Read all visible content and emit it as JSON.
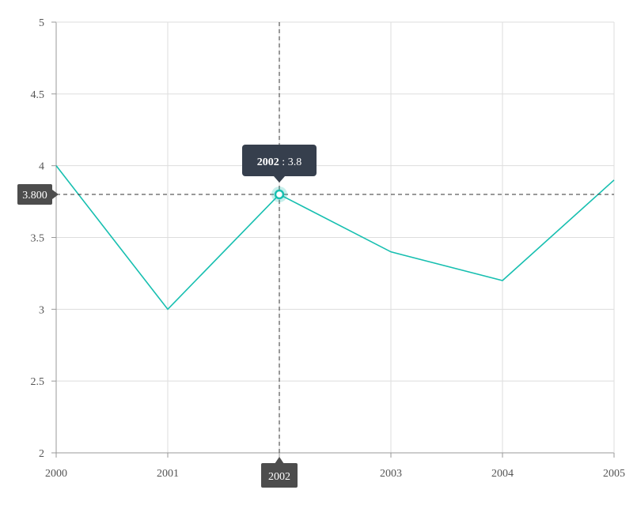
{
  "chart_data": {
    "type": "line",
    "title": "",
    "xlabel": "",
    "ylabel": "",
    "x": [
      2000,
      2001,
      2002,
      2003,
      2004,
      2005
    ],
    "x_tick_labels": [
      "2000",
      "2001",
      "2002",
      "2003",
      "2004",
      "2005"
    ],
    "y_tick_labels": [
      "2",
      "2.5",
      "3",
      "3.5",
      "4",
      "4.5",
      "5"
    ],
    "xlim": [
      2000,
      2005
    ],
    "ylim": [
      2,
      5
    ],
    "grid": true,
    "series": [
      {
        "values": [
          4.0,
          3.0,
          3.8,
          3.4,
          3.2,
          3.9
        ],
        "color": "#17bfb0"
      }
    ],
    "crosshair": {
      "x": 2002,
      "y": 3.8,
      "x_label": "2002",
      "y_label": "3.800"
    },
    "tooltip": {
      "x_text": "2002",
      "separator": " : ",
      "y_text": "3.8"
    }
  },
  "colors": {
    "line": "#17bfb0",
    "grid": "#dddddd",
    "axis": "#999999",
    "crosshair": "#333333",
    "badge": "#4d4d4d",
    "tooltip": "#363f4d"
  }
}
